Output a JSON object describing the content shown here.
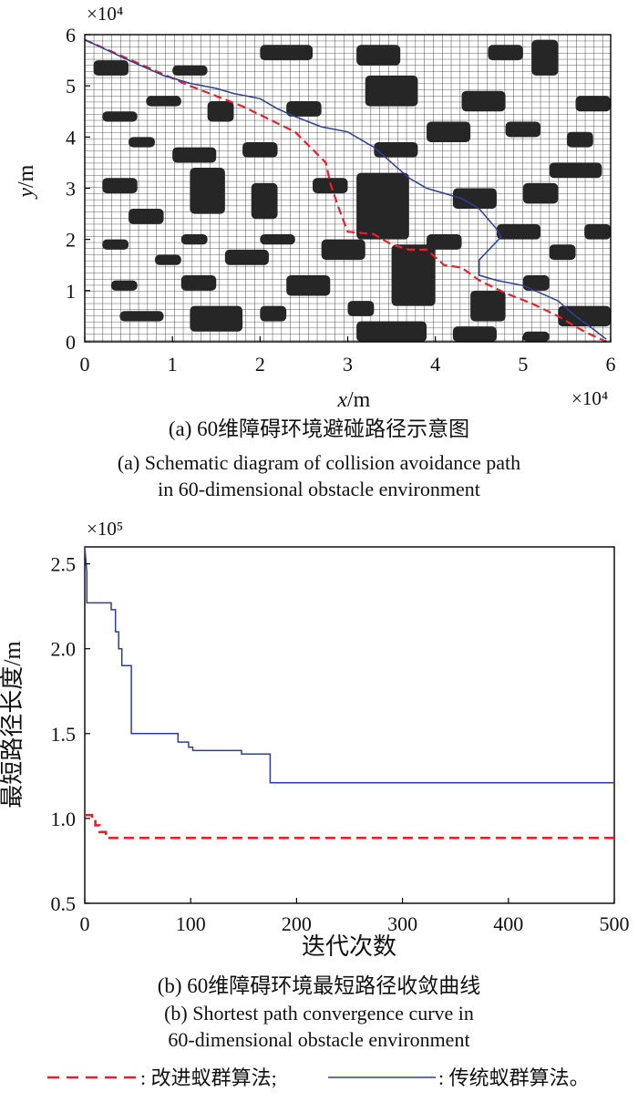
{
  "chart_data": [
    {
      "type": "line",
      "panel": "a",
      "xlabel_var": "x",
      "xlabel_unit": "/m",
      "ylabel_var": "y",
      "ylabel_unit": "/m",
      "x_multiplier": "×10⁴",
      "y_multiplier": "×10⁴",
      "xlim": [
        0,
        6
      ],
      "ylim": [
        0,
        6
      ],
      "xticks": [
        "0",
        "1",
        "2",
        "3",
        "4",
        "5",
        "6"
      ],
      "yticks": [
        "0",
        "1",
        "2",
        "3",
        "4",
        "5",
        "6"
      ],
      "grid": true,
      "obstacles": [
        [
          0.1,
          5.2,
          0.4,
          0.3
        ],
        [
          1.0,
          5.2,
          0.4,
          0.2
        ],
        [
          2.0,
          5.5,
          0.6,
          0.3
        ],
        [
          3.1,
          5.4,
          0.5,
          0.4
        ],
        [
          4.6,
          5.5,
          0.4,
          0.3
        ],
        [
          5.1,
          5.2,
          0.3,
          0.7
        ],
        [
          3.2,
          4.6,
          0.6,
          0.6
        ],
        [
          4.3,
          4.5,
          0.5,
          0.4
        ],
        [
          5.6,
          4.5,
          0.4,
          0.3
        ],
        [
          0.2,
          4.3,
          0.4,
          0.2
        ],
        [
          0.7,
          4.6,
          0.4,
          0.2
        ],
        [
          1.4,
          4.3,
          0.3,
          0.4
        ],
        [
          2.3,
          4.4,
          0.4,
          0.3
        ],
        [
          3.9,
          3.9,
          0.5,
          0.4
        ],
        [
          4.8,
          4.0,
          0.4,
          0.3
        ],
        [
          5.5,
          3.8,
          0.3,
          0.3
        ],
        [
          0.5,
          3.8,
          0.3,
          0.2
        ],
        [
          1.0,
          3.5,
          0.5,
          0.3
        ],
        [
          1.8,
          3.6,
          0.4,
          0.3
        ],
        [
          3.3,
          3.6,
          0.5,
          0.3
        ],
        [
          5.3,
          3.2,
          0.6,
          0.3
        ],
        [
          0.2,
          2.9,
          0.4,
          0.3
        ],
        [
          1.2,
          2.5,
          0.4,
          0.9
        ],
        [
          1.9,
          2.4,
          0.3,
          0.7
        ],
        [
          2.6,
          2.9,
          0.4,
          0.3
        ],
        [
          3.1,
          2.0,
          0.6,
          1.3
        ],
        [
          4.2,
          2.6,
          0.5,
          0.4
        ],
        [
          5.0,
          2.7,
          0.4,
          0.4
        ],
        [
          0.5,
          2.3,
          0.4,
          0.3
        ],
        [
          0.2,
          1.8,
          0.3,
          0.2
        ],
        [
          1.1,
          1.9,
          0.3,
          0.2
        ],
        [
          2.0,
          1.9,
          0.4,
          0.2
        ],
        [
          2.7,
          1.6,
          0.5,
          0.4
        ],
        [
          3.9,
          1.8,
          0.4,
          0.3
        ],
        [
          4.7,
          2.0,
          0.5,
          0.3
        ],
        [
          5.3,
          1.6,
          0.3,
          0.3
        ],
        [
          5.7,
          2.0,
          0.3,
          0.3
        ],
        [
          0.8,
          1.5,
          0.3,
          0.2
        ],
        [
          1.6,
          1.5,
          0.5,
          0.3
        ],
        [
          3.5,
          0.7,
          0.5,
          1.2
        ],
        [
          4.4,
          0.4,
          0.4,
          0.6
        ],
        [
          5.0,
          1.0,
          0.3,
          0.3
        ],
        [
          0.3,
          1.0,
          0.3,
          0.2
        ],
        [
          1.1,
          1.0,
          0.4,
          0.3
        ],
        [
          2.3,
          0.9,
          0.5,
          0.4
        ],
        [
          3.0,
          0.5,
          0.3,
          0.3
        ],
        [
          0.4,
          0.4,
          0.5,
          0.2
        ],
        [
          1.2,
          0.2,
          0.6,
          0.5
        ],
        [
          2.0,
          0.4,
          0.3,
          0.3
        ],
        [
          3.1,
          0.0,
          0.8,
          0.4
        ],
        [
          4.2,
          0.0,
          0.5,
          0.3
        ],
        [
          5.4,
          0.3,
          0.6,
          0.4
        ],
        [
          5.0,
          0.0,
          0.3,
          0.2
        ]
      ],
      "series": [
        {
          "color": "#e8202a",
          "dash": true,
          "x": [
            0.0,
            0.6,
            1.2,
            1.8,
            2.4,
            2.75,
            2.8,
            2.9,
            3.0,
            3.3,
            3.5,
            3.7,
            3.9,
            4.1,
            4.3,
            4.5,
            4.8,
            5.1,
            5.4,
            5.7,
            5.95
          ],
          "y": [
            5.9,
            5.45,
            5.0,
            4.6,
            4.1,
            3.5,
            3.1,
            2.6,
            2.15,
            2.1,
            1.9,
            1.8,
            1.8,
            1.5,
            1.45,
            1.2,
            0.95,
            0.75,
            0.5,
            0.2,
            0.0
          ]
        },
        {
          "color": "#2b3f9a",
          "dash": false,
          "x": [
            0.0,
            0.5,
            0.9,
            1.2,
            1.5,
            1.7,
            2.0,
            2.2,
            2.4,
            2.7,
            3.0,
            3.3,
            3.5,
            3.7,
            3.9,
            4.1,
            4.3,
            4.5,
            4.6,
            4.7,
            4.75,
            4.5,
            4.5,
            4.7,
            5.0,
            5.2,
            5.4,
            5.6,
            5.8,
            5.95
          ],
          "y": [
            5.9,
            5.5,
            5.2,
            5.05,
            4.95,
            4.85,
            4.75,
            4.55,
            4.4,
            4.2,
            4.1,
            3.8,
            3.5,
            3.2,
            3.0,
            2.9,
            2.8,
            2.6,
            2.4,
            2.2,
            2.05,
            1.6,
            1.3,
            1.2,
            1.1,
            0.95,
            0.8,
            0.5,
            0.25,
            0.05
          ]
        }
      ]
    },
    {
      "type": "line",
      "panel": "b",
      "xlabel": "迭代次数",
      "ylabel": "最短路径长度/m",
      "y_multiplier": "×10⁵",
      "xlim": [
        0,
        500
      ],
      "ylim": [
        0.5,
        2.6
      ],
      "xticks": [
        "0",
        "100",
        "200",
        "300",
        "400",
        "500"
      ],
      "yticks": [
        "0.5",
        "1.0",
        "1.5",
        "2.0",
        "2.5"
      ],
      "series": [
        {
          "color": "#e8202a",
          "dash": true,
          "x": [
            0,
            7,
            7,
            10,
            10,
            14,
            14,
            20,
            20,
            500
          ],
          "y": [
            1.02,
            1.02,
            1.0,
            1.0,
            0.96,
            0.96,
            0.92,
            0.92,
            0.885,
            0.885
          ]
        },
        {
          "color": "#2b3f9a",
          "dash": false,
          "x": [
            0,
            2,
            2,
            25,
            25,
            29,
            29,
            32,
            32,
            35,
            35,
            44,
            44,
            88,
            88,
            98,
            98,
            102,
            102,
            148,
            148,
            175,
            175,
            500
          ],
          "y": [
            2.6,
            2.45,
            2.27,
            2.27,
            2.23,
            2.23,
            2.1,
            2.1,
            2.0,
            2.0,
            1.9,
            1.9,
            1.5,
            1.5,
            1.45,
            1.45,
            1.42,
            1.42,
            1.4,
            1.4,
            1.38,
            1.38,
            1.21,
            1.21
          ]
        }
      ]
    }
  ],
  "captions": {
    "a_zh": "(a) 60维障碍环境避碰路径示意图",
    "a_en_1": "(a) Schematic diagram of collision avoidance path",
    "a_en_2": "in 60-dimensional obstacle environment",
    "b_zh": "(b) 60维障碍环境最短路径收敛曲线",
    "b_en_1": "(b) Shortest path convergence curve in",
    "b_en_2": "60-dimensional obstacle environment"
  },
  "legend": {
    "improved": ": 改进蚁群算法;",
    "traditional": ": 传统蚁群算法。",
    "improved_color": "#e8202a",
    "traditional_color": "#2b3f9a"
  }
}
